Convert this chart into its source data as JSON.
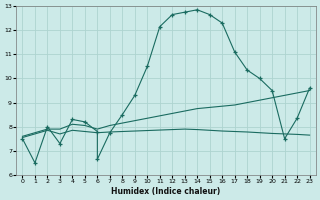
{
  "xlabel": "Humidex (Indice chaleur)",
  "ylabel": "",
  "xlim": [
    -0.5,
    23.5
  ],
  "ylim": [
    6,
    13
  ],
  "xticks": [
    0,
    1,
    2,
    3,
    4,
    5,
    6,
    7,
    8,
    9,
    10,
    11,
    12,
    13,
    14,
    15,
    16,
    17,
    18,
    19,
    20,
    21,
    22,
    23
  ],
  "yticks": [
    6,
    7,
    8,
    9,
    10,
    11,
    12,
    13
  ],
  "bg_color": "#cceae8",
  "grid_color": "#aed4d0",
  "line_color": "#1a6b60",
  "line1_x": [
    0,
    1,
    2,
    3,
    4,
    5,
    6,
    6,
    7,
    8,
    9,
    10,
    11,
    12,
    13,
    14,
    15,
    16,
    17,
    18,
    19,
    20,
    21,
    22,
    23
  ],
  "line1_y": [
    7.5,
    6.5,
    8.0,
    7.3,
    8.3,
    8.2,
    7.8,
    6.65,
    7.75,
    8.5,
    9.3,
    10.5,
    12.15,
    12.65,
    12.75,
    12.85,
    12.65,
    12.3,
    11.1,
    10.35,
    10.0,
    9.5,
    7.5,
    8.35,
    9.6
  ],
  "line2_x": [
    0,
    2,
    3,
    4,
    5,
    6,
    7,
    8,
    9,
    10,
    11,
    12,
    13,
    14,
    15,
    16,
    17,
    18,
    19,
    20,
    21,
    22,
    23
  ],
  "line2_y": [
    7.6,
    7.9,
    7.9,
    8.1,
    8.05,
    7.9,
    8.05,
    8.15,
    8.25,
    8.35,
    8.45,
    8.55,
    8.65,
    8.75,
    8.8,
    8.85,
    8.9,
    9.0,
    9.1,
    9.2,
    9.3,
    9.4,
    9.5
  ],
  "line3_x": [
    0,
    2,
    3,
    4,
    5,
    6,
    7,
    8,
    9,
    10,
    11,
    12,
    13,
    14,
    15,
    16,
    17,
    18,
    19,
    20,
    21,
    22,
    23
  ],
  "line3_y": [
    7.55,
    7.85,
    7.7,
    7.85,
    7.8,
    7.75,
    7.78,
    7.8,
    7.82,
    7.84,
    7.86,
    7.88,
    7.9,
    7.88,
    7.85,
    7.82,
    7.8,
    7.78,
    7.75,
    7.72,
    7.7,
    7.68,
    7.65
  ]
}
